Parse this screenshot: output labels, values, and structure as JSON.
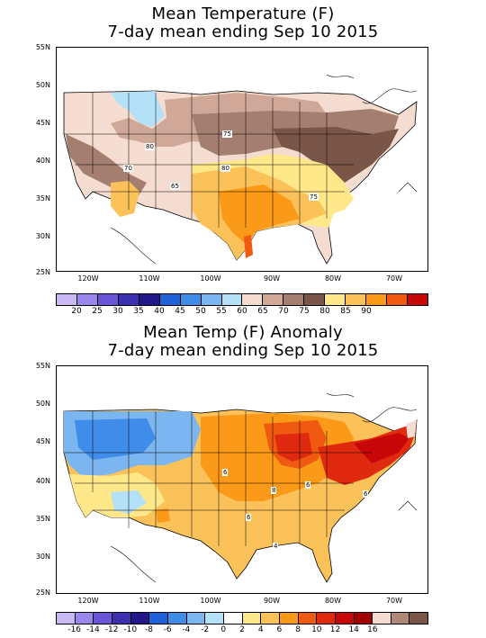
{
  "top_panel": {
    "title_line1": "Mean Temperature (F)",
    "title_line2": "7-day mean ending Sep 10 2015",
    "lat_labels": [
      "55N",
      "50N",
      "45N",
      "40N",
      "35N",
      "30N",
      "25N"
    ],
    "lon_labels": [
      "120W",
      "110W",
      "100W",
      "90W",
      "80W",
      "70W"
    ],
    "contour_labels": [
      "75",
      "80",
      "70",
      "65",
      "80",
      "75"
    ],
    "colorbar": {
      "labels": [
        "20",
        "25",
        "30",
        "35",
        "40",
        "45",
        "50",
        "55",
        "60",
        "65",
        "70",
        "75",
        "80",
        "85",
        "90"
      ],
      "colors": [
        "#c8b8f4",
        "#9b87ec",
        "#6a55d8",
        "#3c2fb0",
        "#22188a",
        "#1f62d8",
        "#3f8de8",
        "#7cb6f0",
        "#b4e0f8",
        "#f4dcd0",
        "#cfa898",
        "#a47e6e",
        "#7a5648",
        "#ffe88a",
        "#fcc25a",
        "#fb9a18",
        "#f05a10",
        "#c80808"
      ]
    }
  },
  "bottom_panel": {
    "title_line1": "Mean Temp (F) Anomaly",
    "title_line2": "7-day mean ending Sep 10 2015",
    "lat_labels": [
      "55N",
      "50N",
      "45N",
      "40N",
      "35N",
      "30N",
      "25N"
    ],
    "lon_labels": [
      "120W",
      "110W",
      "100W",
      "90W",
      "80W",
      "70W"
    ],
    "contour_labels": [
      "6",
      "6",
      "8",
      "6",
      "6",
      "4"
    ],
    "colorbar": {
      "labels": [
        "-16",
        "-14",
        "-12",
        "-10",
        "-8",
        "-6",
        "-4",
        "-2",
        "0",
        "2",
        "4",
        "6",
        "8",
        "10",
        "12",
        "14",
        "16"
      ],
      "colors": [
        "#c8b8f4",
        "#9b87ec",
        "#6a55d8",
        "#3c2fb0",
        "#22188a",
        "#1f62d8",
        "#3f8de8",
        "#7cb6f0",
        "#b4e0f8",
        "#ffffff",
        "#ffe88a",
        "#fcc25a",
        "#fb9a18",
        "#f05a10",
        "#e02a10",
        "#c80808",
        "#a00000",
        "#f4dcd0",
        "#b08878",
        "#7a5648"
      ]
    }
  }
}
